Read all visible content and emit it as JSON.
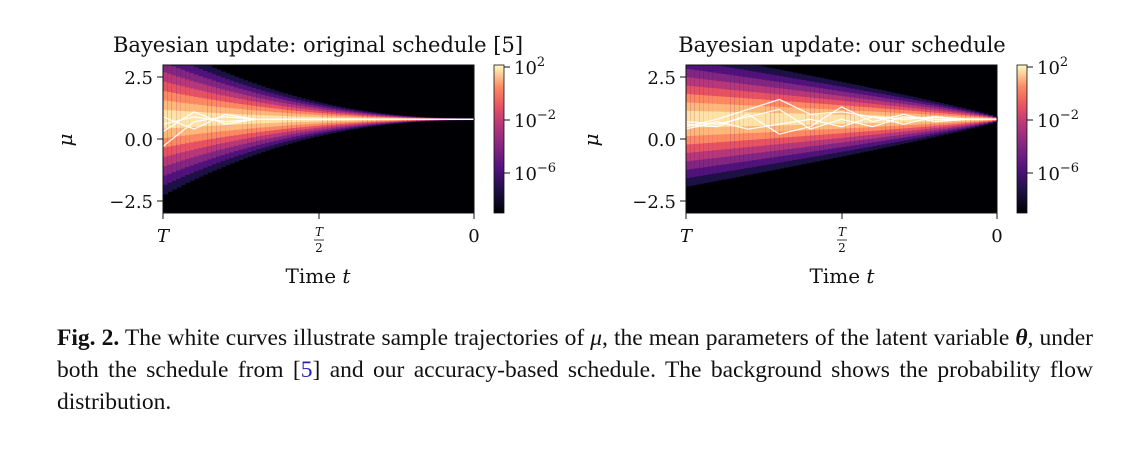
{
  "chart_data": [
    {
      "type": "heatmap",
      "title": "Bayesian update: original schedule [5]",
      "xlabel": "Time t",
      "ylabel": "μ",
      "xticks": [
        "T",
        "T/2",
        "0"
      ],
      "yticks": [
        2.5,
        0.0,
        -2.5
      ],
      "ylim": [
        -3.0,
        3.0
      ],
      "colorbar": {
        "scale": "log",
        "ticks": [
          "10^2",
          "10^-2",
          "10^-6"
        ],
        "colormap": "magma"
      },
      "trajectories": [
        {
          "t": [
            0,
            0.1,
            0.2,
            0.3,
            0.4,
            0.5,
            0.6,
            0.7,
            0.8,
            0.9,
            1.0
          ],
          "mu": [
            -0.3,
            0.7,
            0.9,
            0.8,
            0.8,
            0.8,
            0.8,
            0.8,
            0.8,
            0.8,
            0.8
          ]
        },
        {
          "t": [
            0,
            0.1,
            0.2,
            0.3,
            0.4,
            0.5,
            0.6,
            0.7,
            0.8,
            0.9,
            1.0
          ],
          "mu": [
            0.3,
            1.1,
            0.6,
            0.8,
            0.8,
            0.8,
            0.8,
            0.8,
            0.8,
            0.8,
            0.8
          ]
        },
        {
          "t": [
            0,
            0.1,
            0.2,
            0.3,
            0.4,
            0.5,
            0.6,
            0.7,
            0.8,
            0.9,
            1.0
          ],
          "mu": [
            0.9,
            0.4,
            1.0,
            0.8,
            0.8,
            0.8,
            0.8,
            0.8,
            0.8,
            0.8,
            0.8
          ]
        },
        {
          "t": [
            0,
            0.1,
            0.2,
            0.3,
            0.4,
            0.5,
            0.6,
            0.7,
            0.8,
            0.9,
            1.0
          ],
          "mu": [
            0.6,
            0.9,
            0.7,
            0.8,
            0.8,
            0.8,
            0.8,
            0.8,
            0.8,
            0.8,
            0.8
          ]
        }
      ]
    },
    {
      "type": "heatmap",
      "title": "Bayesian update: our schedule",
      "xlabel": "Time t",
      "ylabel": "μ",
      "xticks": [
        "T",
        "T/2",
        "0"
      ],
      "yticks": [
        2.5,
        0.0,
        -2.5
      ],
      "ylim": [
        -3.0,
        3.0
      ],
      "colorbar": {
        "scale": "log",
        "ticks": [
          "10^2",
          "10^-2",
          "10^-6"
        ],
        "colormap": "magma"
      },
      "trajectories": [
        {
          "t": [
            0,
            0.1,
            0.2,
            0.3,
            0.4,
            0.5,
            0.6,
            0.7,
            0.8,
            0.9,
            1.0
          ],
          "mu": [
            0.5,
            0.8,
            1.2,
            1.6,
            1.0,
            1.1,
            0.9,
            0.8,
            0.9,
            0.8,
            0.8
          ]
        },
        {
          "t": [
            0,
            0.1,
            0.2,
            0.3,
            0.4,
            0.5,
            0.6,
            0.7,
            0.8,
            0.9,
            1.0
          ],
          "mu": [
            0.6,
            0.5,
            1.0,
            0.2,
            0.5,
            1.3,
            0.7,
            1.0,
            0.7,
            0.8,
            0.8
          ]
        },
        {
          "t": [
            0,
            0.1,
            0.2,
            0.3,
            0.4,
            0.5,
            0.6,
            0.7,
            0.8,
            0.9,
            1.0
          ],
          "mu": [
            0.4,
            0.7,
            0.4,
            0.6,
            0.8,
            0.5,
            0.9,
            0.6,
            0.9,
            0.8,
            0.8
          ]
        },
        {
          "t": [
            0,
            0.1,
            0.2,
            0.3,
            0.4,
            0.5,
            0.6,
            0.7,
            0.8,
            0.9,
            1.0
          ],
          "mu": [
            0.7,
            0.6,
            0.9,
            1.2,
            0.4,
            0.8,
            0.5,
            0.9,
            0.8,
            0.8,
            0.8
          ]
        }
      ]
    }
  ],
  "caption": {
    "label": "Fig. 2.",
    "part1": " The white curves illustrate sample trajectories of ",
    "mu": "μ",
    "part2": ", the mean parameters of the latent variable ",
    "theta": "θ",
    "part3": ", under both the schedule from [",
    "ref": "5",
    "part4": "] and our accuracy-based schedule. The background shows the probability flow distribution."
  },
  "colors": {
    "trajectory": "#ffffff",
    "caption_ref": "#2020c0"
  }
}
